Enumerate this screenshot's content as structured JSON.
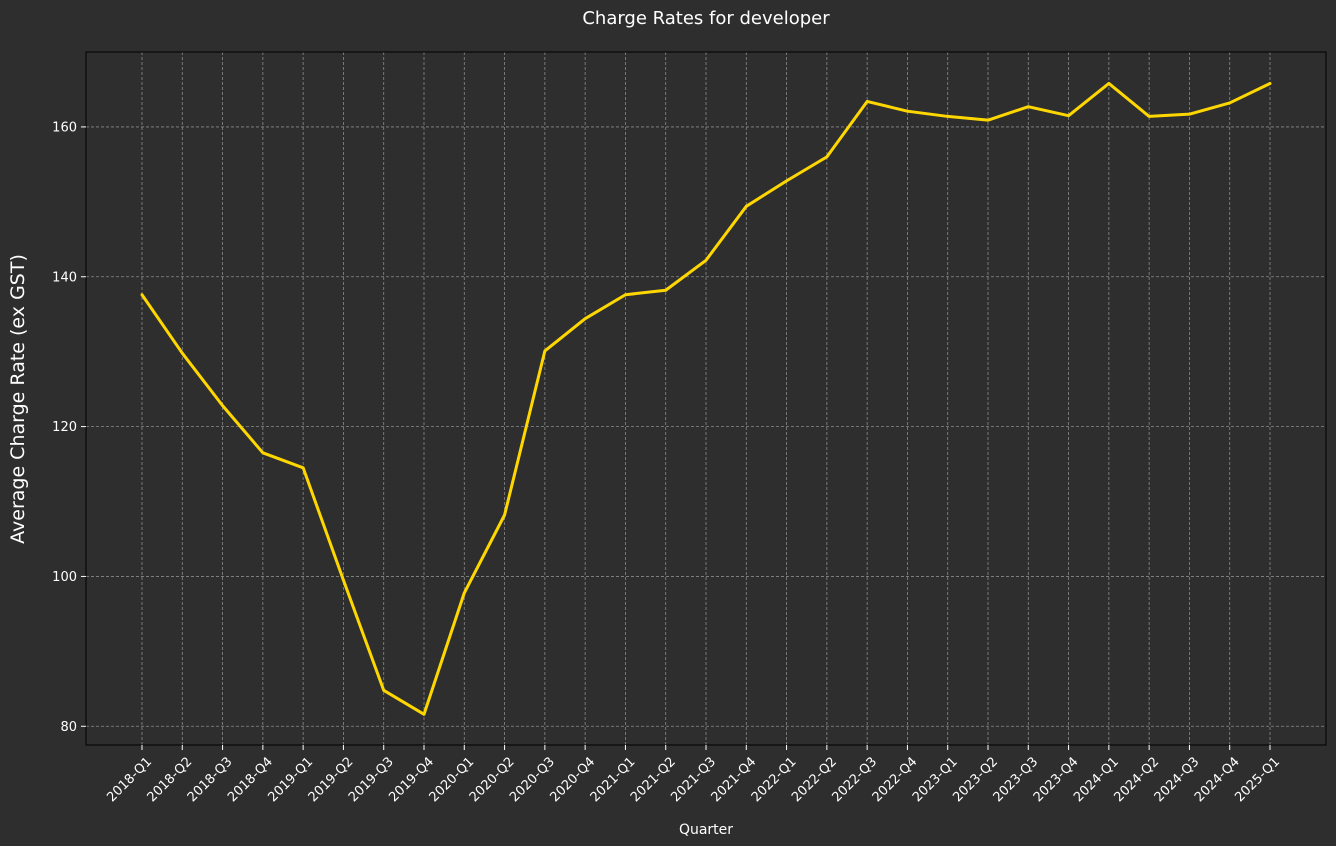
{
  "chart_data": {
    "type": "line",
    "title": "Charge Rates for developer",
    "xlabel": "Quarter",
    "ylabel": "Average Charge Rate (ex GST)",
    "categories": [
      "2018-Q1",
      "2018-Q2",
      "2018-Q3",
      "2018-Q4",
      "2019-Q1",
      "2019-Q2",
      "2019-Q3",
      "2019-Q4",
      "2020-Q1",
      "2020-Q2",
      "2020-Q3",
      "2020-Q4",
      "2021-Q1",
      "2021-Q2",
      "2021-Q3",
      "2021-Q4",
      "2022-Q1",
      "2022-Q2",
      "2022-Q3",
      "2022-Q4",
      "2023-Q1",
      "2023-Q2",
      "2023-Q3",
      "2023-Q4",
      "2024-Q1",
      "2024-Q2",
      "2024-Q3",
      "2024-Q4",
      "2025-Q1"
    ],
    "series": [
      {
        "values": [
          137.6,
          129.8,
          122.8,
          116.5,
          114.5,
          99.5,
          84.8,
          81.6,
          97.8,
          108.2,
          130.1,
          134.4,
          137.6,
          138.2,
          142.2,
          149.4,
          152.8,
          156.0,
          163.4,
          162.1,
          161.4,
          160.9,
          162.7,
          161.5,
          165.8,
          161.4,
          161.7,
          163.2,
          165.8
        ],
        "color": "#FFD700"
      }
    ],
    "ylim": [
      77.5,
      170
    ],
    "yticks": [
      80,
      100,
      120,
      140,
      160
    ],
    "grid": true,
    "legend": "none",
    "colors": {
      "background": "#2e2e2e",
      "line": "#FFD700",
      "grid": "#8a8a8a",
      "text": "#ffffff",
      "frame": "#000000"
    }
  }
}
